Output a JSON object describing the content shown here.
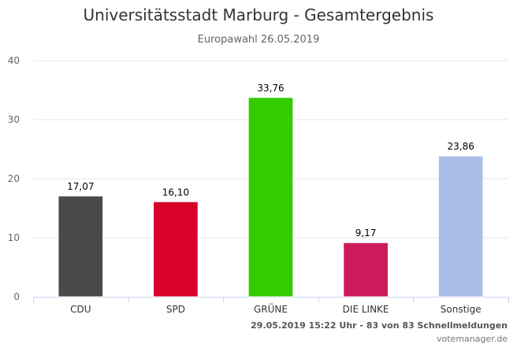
{
  "chart_data": {
    "type": "bar",
    "title": "Universitätsstadt Marburg - Gesamtergebnis",
    "subtitle": "Europawahl 26.05.2019",
    "categories": [
      "CDU",
      "SPD",
      "GRÜNE",
      "DIE LINKE",
      "Sonstige"
    ],
    "values": [
      17.07,
      16.1,
      33.76,
      9.17,
      23.86
    ],
    "value_labels": [
      "17,07",
      "16,10",
      "33,76",
      "9,17",
      "23,86"
    ],
    "colors": [
      "#4a4a4a",
      "#d9002a",
      "#33cc00",
      "#cc1a5c",
      "#aabfe8"
    ],
    "yticks": [
      "0",
      "10",
      "20",
      "30",
      "40"
    ],
    "ylim": [
      0,
      40
    ],
    "grid": true,
    "legend": "none"
  },
  "footer": {
    "status": "29.05.2019 15:22 Uhr - 83 von 83 Schnellmeldungen",
    "source": "votemanager.de"
  }
}
